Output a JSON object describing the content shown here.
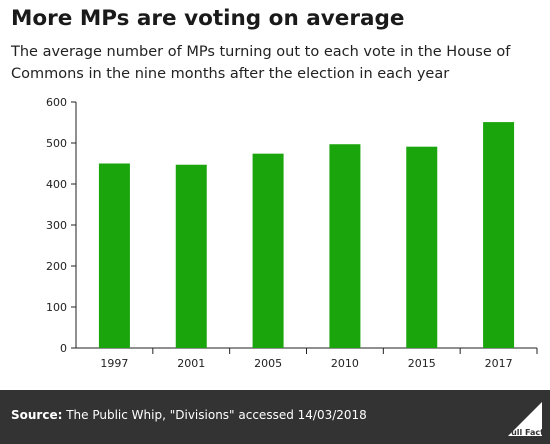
{
  "title": "More MPs are voting on average",
  "subtitle": "The average number of MPs turning out to each vote in the House of Commons in the nine months after the election in each year",
  "footer": {
    "source_label": "Source:",
    "source_text": " The Public Whip, \"Divisions\" accessed 14/03/2018",
    "logo_text": "Full Fact",
    "logo_icon": "full-fact-logo-icon"
  },
  "colors": {
    "bar": "#1aa50d",
    "footer_bg": "#333333",
    "axis": "#222222",
    "grid": "#cccccc"
  },
  "chart_data": {
    "type": "bar",
    "title": "More MPs are voting on average",
    "categories": [
      "1997",
      "2001",
      "2005",
      "2010",
      "2015",
      "2017"
    ],
    "values": [
      450,
      447,
      474,
      497,
      491,
      551
    ],
    "xlabel": "",
    "ylabel": "",
    "ylim": [
      0,
      600
    ],
    "yticks": [
      0,
      100,
      200,
      300,
      400,
      500,
      600
    ],
    "grid": false,
    "legend": "none"
  }
}
